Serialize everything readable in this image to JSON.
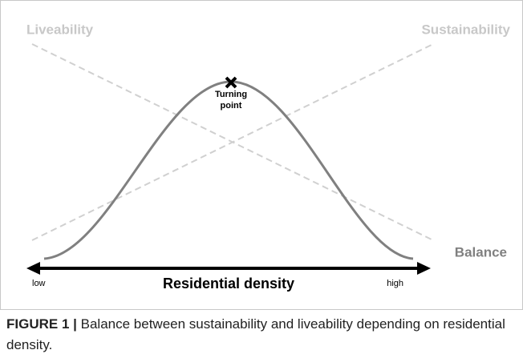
{
  "diagram": {
    "left_label": "Liveability",
    "right_label": "Sustainability",
    "curve_label": "Balance",
    "peak_label": [
      "Turning",
      "point"
    ],
    "axis": {
      "label": "Residential density",
      "low": "low",
      "high": "high"
    }
  },
  "caption": {
    "label": "FIGURE 1 |",
    "text": "Balance between sustainability and liveability depending on residential density."
  }
}
